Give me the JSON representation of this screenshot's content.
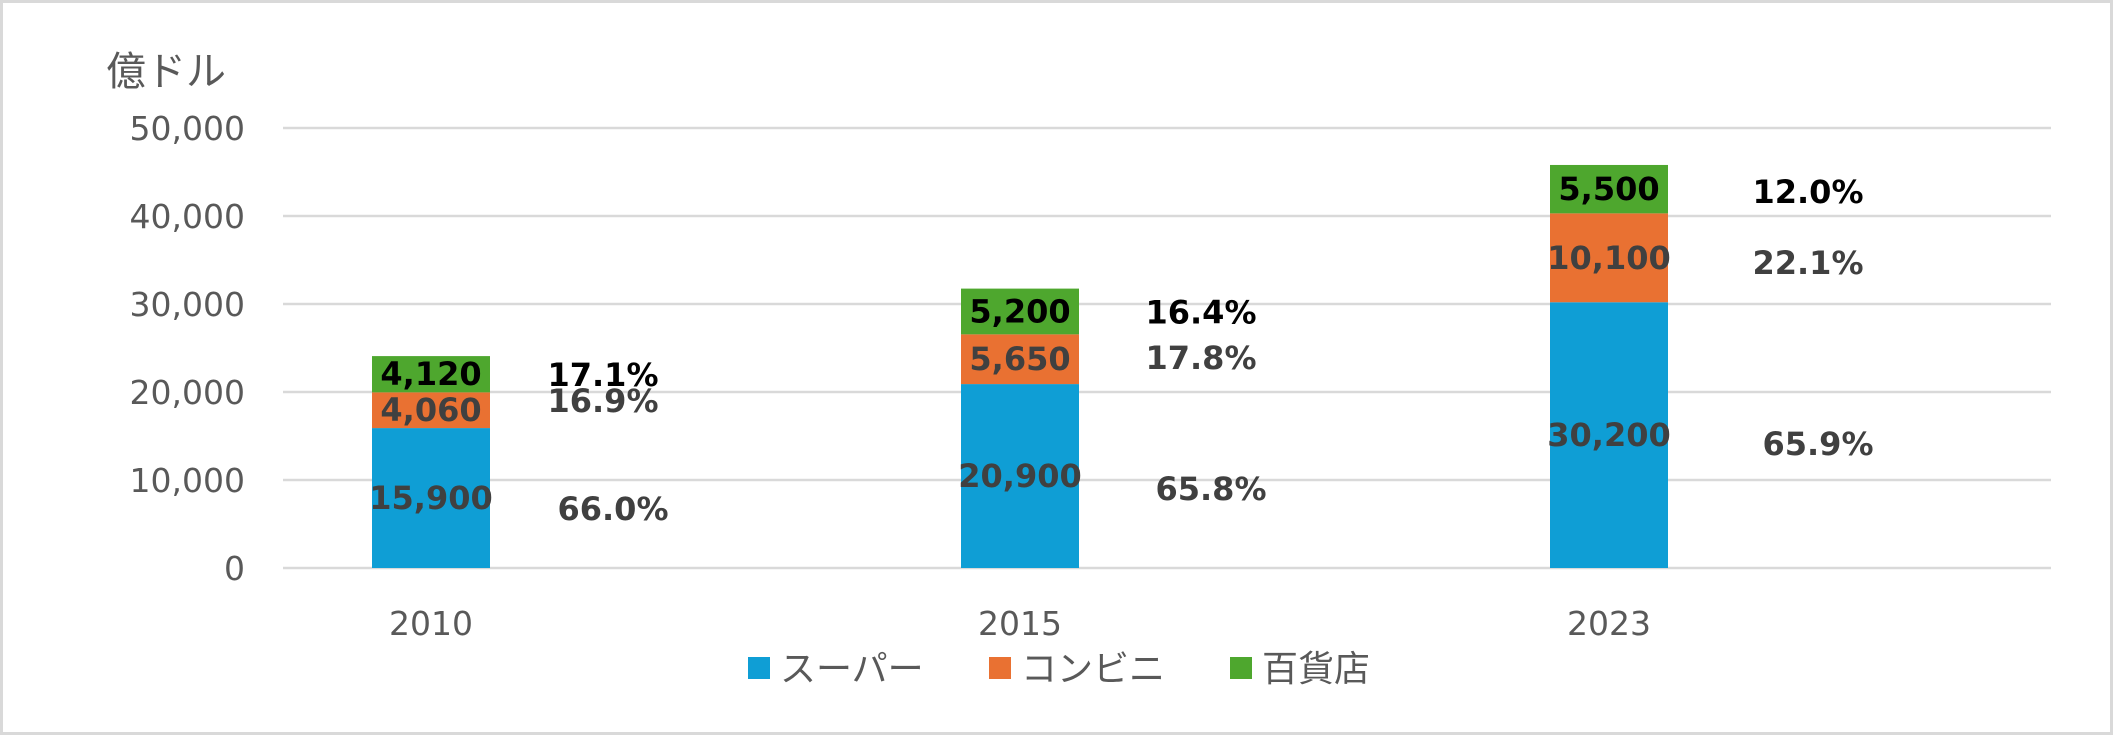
{
  "chart_data": {
    "type": "bar",
    "stacked": true,
    "unit_label": "億ドル",
    "categories": [
      "2010",
      "2015",
      "2023"
    ],
    "ylim": [
      0,
      50000
    ],
    "yticks": [
      "0",
      "10,000",
      "20,000",
      "30,000",
      "40,000",
      "50,000"
    ],
    "grid": true,
    "legend_position": "bottom",
    "series": [
      {
        "name": "スーパー",
        "color": "#0f9ed5",
        "values": [
          15900,
          20900,
          30200
        ],
        "value_labels": [
          "15,900",
          "20,900",
          "30,200"
        ],
        "share_labels": [
          "66.0%",
          "65.8%",
          "65.9%"
        ]
      },
      {
        "name": "コンビニ",
        "color": "#e97132",
        "values": [
          4060,
          5650,
          10100
        ],
        "value_labels": [
          "4,060",
          "5,650",
          "10,100"
        ],
        "share_labels": [
          "16.9%",
          "17.8%",
          "22.1%"
        ]
      },
      {
        "name": "百貨店",
        "color": "#4ea72e",
        "values": [
          4120,
          5200,
          5500
        ],
        "value_labels": [
          "4,120",
          "5,200",
          "5,500"
        ],
        "share_labels": [
          "17.1%",
          "16.4%",
          "12.0%"
        ]
      }
    ]
  }
}
